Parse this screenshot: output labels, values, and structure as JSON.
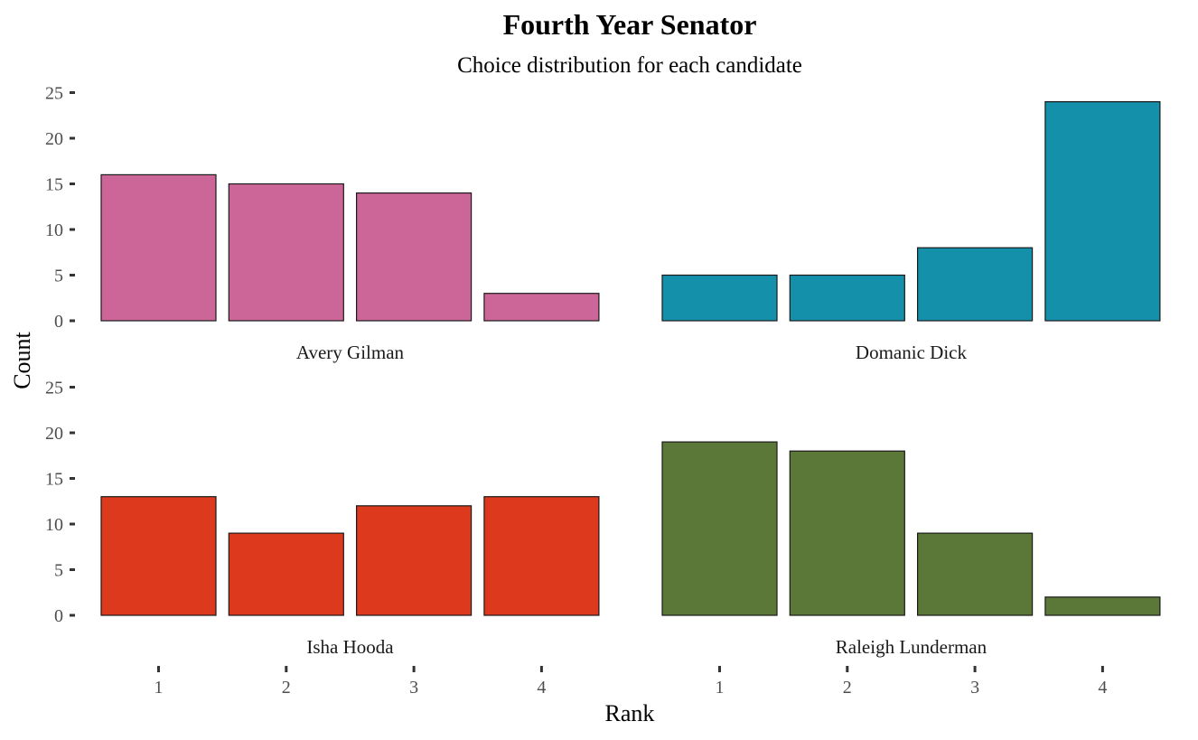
{
  "chart_data": {
    "type": "bar",
    "title": "Fourth Year Senator",
    "subtitle": "Choice distribution for each candidate",
    "xlabel": "Rank",
    "ylabel": "Count",
    "categories": [
      "1",
      "2",
      "3",
      "4"
    ],
    "y_ticks": [
      "0",
      "5",
      "10",
      "15",
      "20",
      "25"
    ],
    "ylim": [
      0,
      25
    ],
    "grid": false,
    "facets": [
      {
        "name": "Avery Gilman",
        "color": "#CC6699",
        "values": [
          16,
          15,
          14,
          3
        ]
      },
      {
        "name": "Domanic Dick",
        "color": "#1590AA",
        "values": [
          5,
          5,
          8,
          24
        ]
      },
      {
        "name": "Isha Hooda",
        "color": "#DD3A1D",
        "values": [
          13,
          9,
          12,
          13
        ]
      },
      {
        "name": "Raleigh Lunderman",
        "color": "#5C7838",
        "values": [
          19,
          18,
          9,
          2
        ]
      }
    ]
  }
}
